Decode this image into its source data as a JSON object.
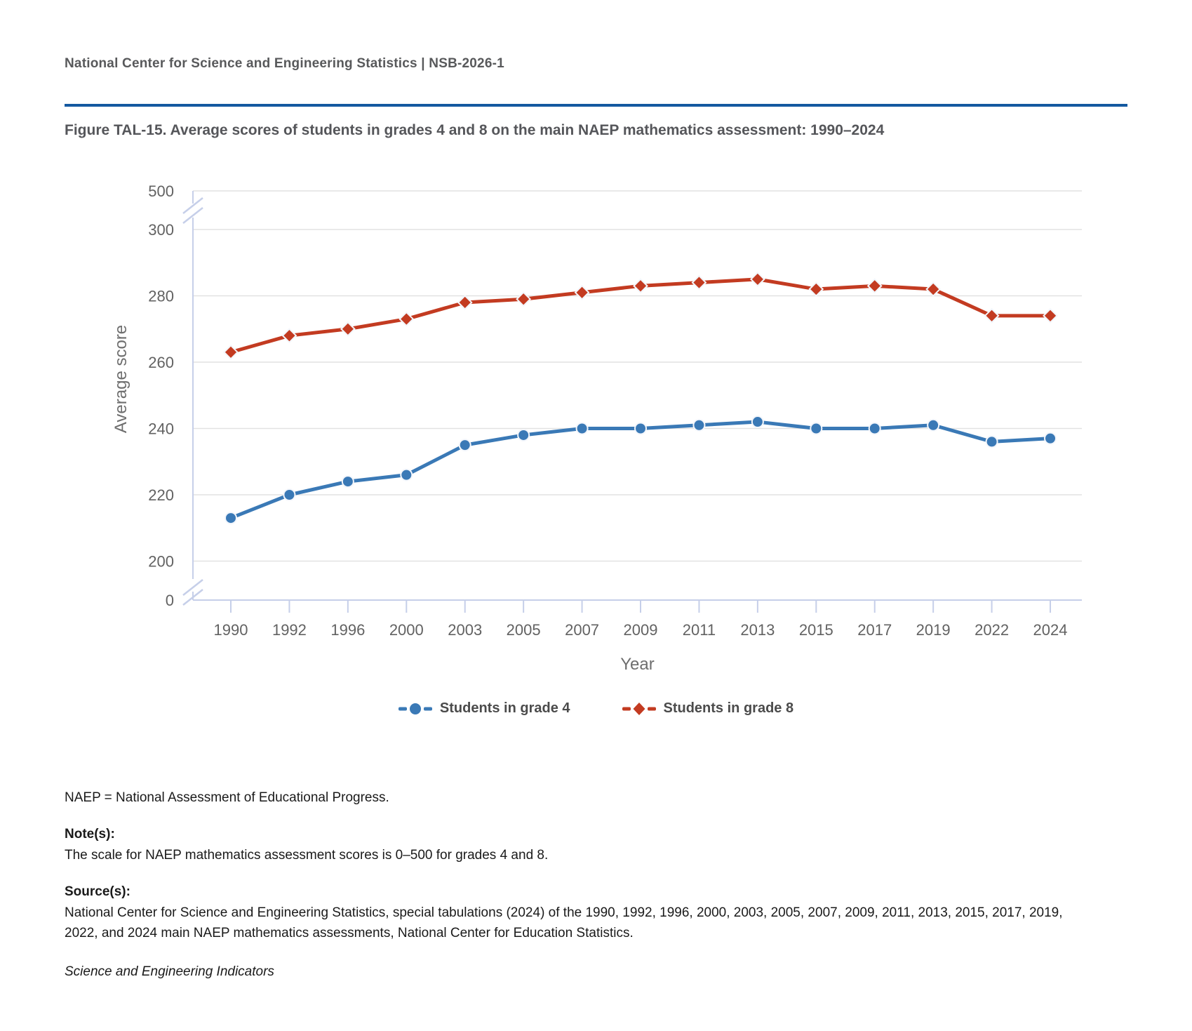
{
  "header": {
    "text": "National Center for Science and Engineering Statistics  |  NSB-2026-1"
  },
  "chart_data": {
    "type": "line",
    "title": "Figure TAL-15. Average scores of students in grades 4 and 8 on the main NAEP mathematics assessment: 1990–2024",
    "xlabel": "Year",
    "ylabel": "Average score",
    "categories": [
      "1990",
      "1992",
      "1996",
      "2000",
      "2003",
      "2005",
      "2007",
      "2009",
      "2011",
      "2013",
      "2015",
      "2017",
      "2019",
      "2022",
      "2024"
    ],
    "series": [
      {
        "name": "Students in grade 4",
        "marker": "circle",
        "color": "#3a79b6",
        "values": [
          213,
          220,
          224,
          226,
          235,
          238,
          240,
          240,
          241,
          242,
          240,
          240,
          241,
          236,
          237
        ]
      },
      {
        "name": "Students in grade 8",
        "marker": "diamond",
        "color": "#c33b21",
        "values": [
          263,
          268,
          270,
          273,
          278,
          279,
          281,
          283,
          284,
          285,
          282,
          283,
          282,
          274,
          274
        ]
      }
    ],
    "y_ticks": [
      500,
      300,
      280,
      260,
      240,
      220,
      200,
      0
    ],
    "axis_break": true,
    "ylim_display": [
      200,
      300
    ],
    "full_scale": [
      0,
      500
    ],
    "grid": true,
    "legend_position": "bottom"
  },
  "notes": {
    "abbreviation": "NAEP = National Assessment of Educational Progress.",
    "note_label": "Note(s):",
    "note_text": "The scale for NAEP mathematics assessment scores is 0–500 for grades 4 and 8.",
    "source_label": "Source(s):",
    "source_text": "National Center for Science and Engineering Statistics, special tabulations (2024) of the 1990, 1992, 1996, 2000, 2003, 2005, 2007, 2009, 2011, 2013, 2015, 2017, 2019, 2022, and 2024 main NAEP mathematics assessments, National Center for Education Statistics.",
    "publication": "Science and Engineering Indicators"
  },
  "colors": {
    "divider_blue": "#1459a0",
    "gridline": "#e2e2e2",
    "axis_line": "#c6cfe9",
    "tick_text": "#626262",
    "axis_title_text": "#6e6e6e",
    "heading_text": "#55565a",
    "legend_text": "#4b4b4b"
  }
}
